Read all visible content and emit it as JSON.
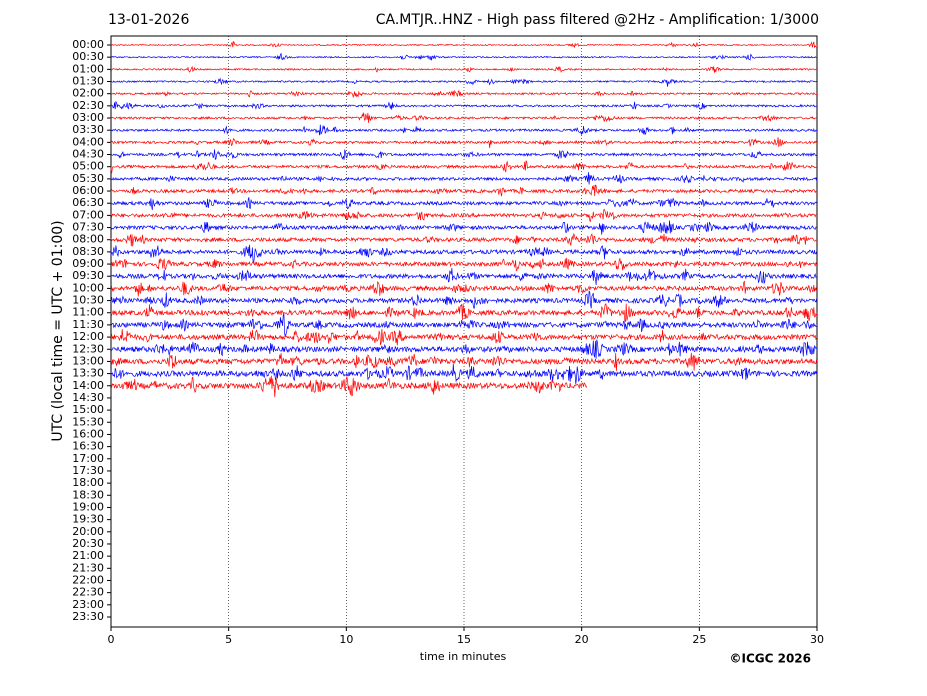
{
  "chart_data": {
    "type": "helicorder",
    "date": "13-01-2026",
    "title": "CA.MTJR..HNZ - High pass filtered @2Hz - Amplification: 1/3000",
    "xlabel": "time in minutes",
    "ylabel": "UTC (local time = UTC + 01:00)",
    "credit": "©ICGC 2026",
    "categories": [
      "00:00",
      "00:30",
      "01:00",
      "01:30",
      "02:00",
      "02:30",
      "03:00",
      "03:30",
      "04:00",
      "04:30",
      "05:00",
      "05:30",
      "06:00",
      "06:30",
      "07:00",
      "07:30",
      "08:00",
      "08:30",
      "09:00",
      "09:30",
      "10:00",
      "10:30",
      "11:00",
      "11:30",
      "12:00",
      "12:30",
      "13:00",
      "13:30",
      "14:00",
      "14:30",
      "15:00",
      "15:30",
      "16:00",
      "16:30",
      "17:00",
      "17:30",
      "18:00",
      "18:30",
      "19:00",
      "19:30",
      "20:00",
      "20:30",
      "21:00",
      "21:30",
      "22:00",
      "22:30",
      "23:00",
      "23:30"
    ],
    "xlim": [
      0,
      30
    ],
    "xticks": [
      0,
      5,
      10,
      15,
      20,
      25,
      30
    ],
    "grid": true,
    "series": [
      {
        "color": "#ff0000",
        "end": 30
      },
      {
        "color": "#0000ff",
        "end": 30
      },
      {
        "color": "#ff0000",
        "end": 30
      },
      {
        "color": "#0000ff",
        "end": 30
      },
      {
        "color": "#ff0000",
        "end": 30
      },
      {
        "color": "#0000ff",
        "end": 30
      },
      {
        "color": "#ff0000",
        "end": 30
      },
      {
        "color": "#0000ff",
        "end": 30
      },
      {
        "color": "#ff0000",
        "end": 30
      },
      {
        "color": "#0000ff",
        "end": 30
      },
      {
        "color": "#ff0000",
        "end": 30
      },
      {
        "color": "#0000ff",
        "end": 30
      },
      {
        "color": "#ff0000",
        "end": 30
      },
      {
        "color": "#0000ff",
        "end": 30
      },
      {
        "color": "#ff0000",
        "end": 30
      },
      {
        "color": "#0000ff",
        "end": 30
      },
      {
        "color": "#ff0000",
        "end": 30
      },
      {
        "color": "#0000ff",
        "end": 30
      },
      {
        "color": "#ff0000",
        "end": 30
      },
      {
        "color": "#0000ff",
        "end": 30
      },
      {
        "color": "#ff0000",
        "end": 30
      },
      {
        "color": "#0000ff",
        "end": 30
      },
      {
        "color": "#ff0000",
        "end": 30
      },
      {
        "color": "#0000ff",
        "end": 30
      },
      {
        "color": "#ff0000",
        "end": 30
      },
      {
        "color": "#0000ff",
        "end": 30
      },
      {
        "color": "#ff0000",
        "end": 30
      },
      {
        "color": "#0000ff",
        "end": 30
      },
      {
        "color": "#ff0000",
        "end": 20.2
      }
    ]
  }
}
